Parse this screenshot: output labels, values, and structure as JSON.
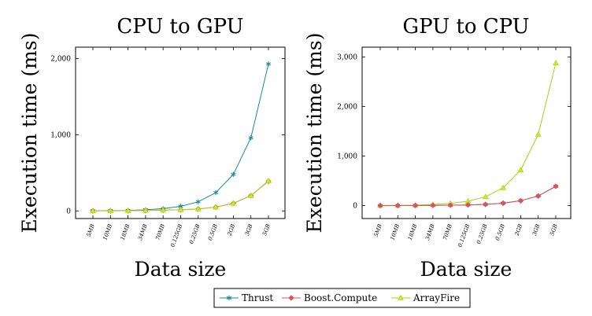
{
  "chart_data": [
    {
      "type": "line",
      "title": "CPU to GPU",
      "xlabel": "Data size",
      "ylabel": "Execution time (ms)",
      "categories": [
        "5MB",
        "10MB",
        "18MB",
        "34MB",
        "70MB",
        "0.125GB",
        "0.25GB",
        "0.5GB",
        "2GB",
        "3GB",
        "5GB"
      ],
      "yticks": [
        0,
        1000,
        2000
      ],
      "ytick_labels": [
        "0",
        "1,000",
        "2,000"
      ],
      "ylim": [
        -100,
        2150
      ],
      "series": [
        {
          "name": "Thrust",
          "values": [
            3,
            4,
            6,
            15,
            30,
            60,
            120,
            240,
            480,
            960,
            1930
          ]
        },
        {
          "name": "Boost.Compute",
          "values": [
            1,
            2,
            3,
            5,
            10,
            15,
            25,
            50,
            100,
            200,
            390
          ]
        },
        {
          "name": "ArrayFire",
          "values": [
            1,
            2,
            3,
            5,
            10,
            15,
            25,
            50,
            100,
            200,
            395
          ]
        }
      ]
    },
    {
      "type": "line",
      "title": "GPU to CPU",
      "xlabel": "Data size",
      "ylabel": "Execution time (ms)",
      "categories": [
        "5MB",
        "10MB",
        "18MB",
        "34MB",
        "70MB",
        "0.125GB",
        "0.25GB",
        "0.5GB",
        "2GB",
        "3GB",
        "5GB"
      ],
      "yticks": [
        0,
        1000,
        2000,
        3000
      ],
      "ytick_labels": [
        "0",
        "1,000",
        "2,000",
        "3,000"
      ],
      "ylim": [
        -260,
        3200
      ],
      "series": [
        {
          "name": "Thrust",
          "values": [
            1,
            2,
            3,
            5,
            10,
            15,
            25,
            50,
            100,
            195,
            390
          ]
        },
        {
          "name": "Boost.Compute",
          "values": [
            1,
            2,
            3,
            5,
            10,
            15,
            25,
            50,
            100,
            195,
            390
          ]
        },
        {
          "name": "ArrayFire",
          "values": [
            3,
            5,
            10,
            25,
            45,
            90,
            180,
            360,
            720,
            1440,
            2880
          ]
        }
      ]
    }
  ],
  "legend": {
    "items": [
      {
        "label": "Thrust",
        "color": "#1a8a9a",
        "marker": "star"
      },
      {
        "label": "Boost.Compute",
        "color": "#e0505a",
        "marker": "diamond"
      },
      {
        "label": "ArrayFire",
        "color": "#a6d21a",
        "marker": "triangle"
      }
    ]
  },
  "colors": {
    "Thrust": "#1a8a9a",
    "Boost.Compute": "#e0505a",
    "ArrayFire": "#a6d21a",
    "ArrayFire_marker_fill": "#c8ec1e",
    "axis": "#000000"
  }
}
